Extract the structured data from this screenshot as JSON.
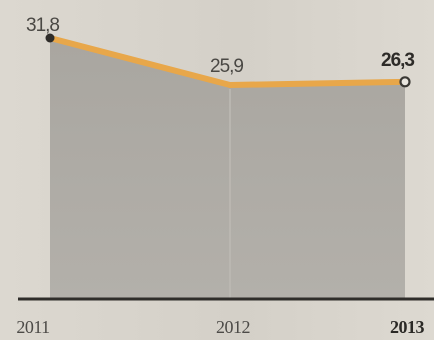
{
  "chart_data": {
    "type": "area",
    "x": [
      "2011",
      "2012",
      "2013"
    ],
    "values": [
      31.8,
      25.9,
      26.3
    ],
    "data_labels": [
      "31,8",
      "25,9",
      "26,3"
    ],
    "highlight_index": 2,
    "title": "",
    "xlabel": "",
    "ylabel": "",
    "ylim": [
      0,
      34
    ],
    "grid": false,
    "legend": "none",
    "colors": {
      "line": "#e8a74a",
      "area": "#aaa7a1",
      "background": "#d9d5cd",
      "axis": "#2f2d2a",
      "marker_start": "#2e2c29",
      "marker_end": "#3a3834"
    }
  }
}
